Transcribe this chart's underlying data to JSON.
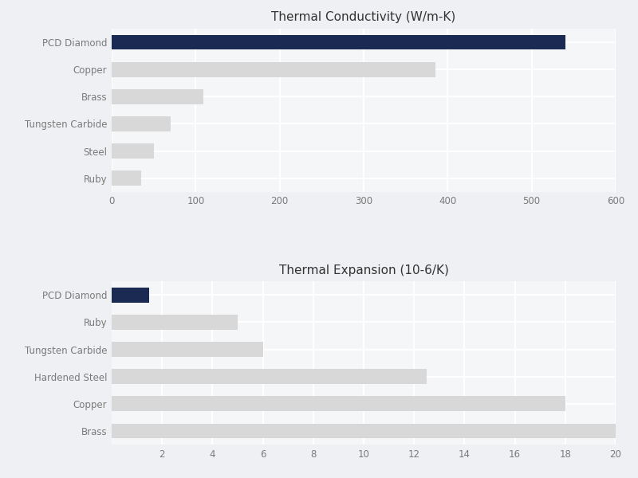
{
  "conductivity": {
    "title": "Thermal Conductivity (W/m-K)",
    "categories": [
      "PCD Diamond",
      "Copper",
      "Brass",
      "Tungsten Carbide",
      "Steel",
      "Ruby"
    ],
    "values": [
      540,
      385,
      109,
      70,
      50,
      35
    ],
    "colors": [
      "#1b2a52",
      "#d8d8d8",
      "#d8d8d8",
      "#d8d8d8",
      "#d8d8d8",
      "#d8d8d8"
    ],
    "xlim": [
      0,
      600
    ],
    "xticks": [
      0,
      100,
      200,
      300,
      400,
      500,
      600
    ]
  },
  "expansion": {
    "title": "Thermal Expansion (10-6/K)",
    "categories": [
      "PCD Diamond",
      "Ruby",
      "Tungsten Carbide",
      "Hardened Steel",
      "Copper",
      "Brass"
    ],
    "values": [
      1.5,
      5.0,
      6.0,
      12.5,
      18.0,
      20.0
    ],
    "colors": [
      "#1b2a52",
      "#d8d8d8",
      "#d8d8d8",
      "#d8d8d8",
      "#d8d8d8",
      "#d8d8d8"
    ],
    "xlim": [
      0,
      20
    ],
    "xticks": [
      2,
      4,
      6,
      8,
      10,
      12,
      14,
      16,
      18,
      20
    ]
  },
  "background_color": "#eef0f3",
  "bar_height": 0.55,
  "title_fontsize": 11,
  "label_fontsize": 8.5,
  "tick_fontsize": 8.5,
  "label_color": "#7a7a7a",
  "grid_color": "#ffffff",
  "axes_bg_color": "#f5f6f8"
}
